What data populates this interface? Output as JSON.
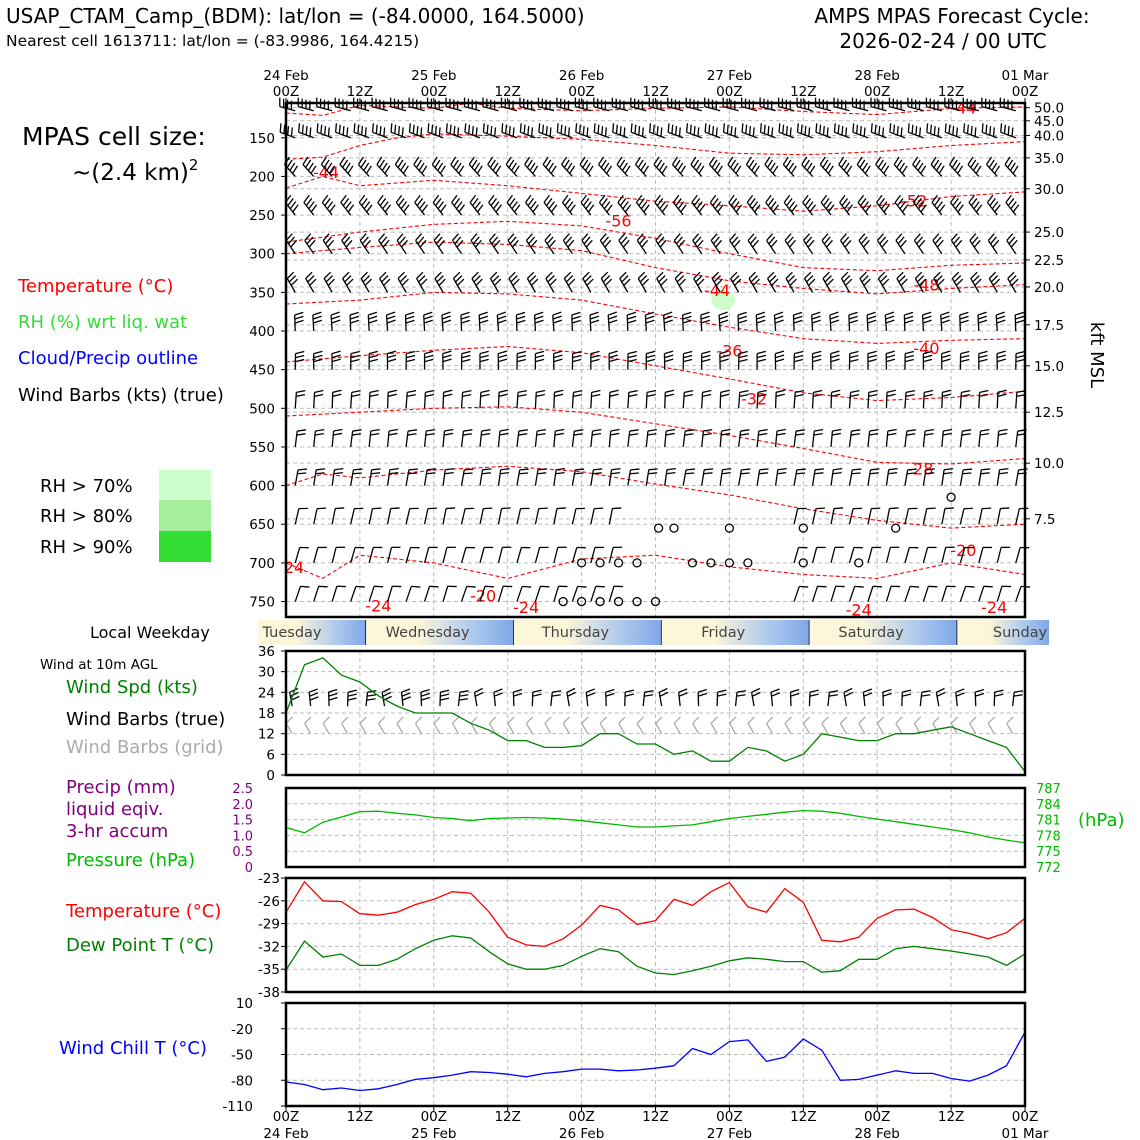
{
  "header": {
    "title_left": "USAP_CTAM_Camp_(BDM): lat/lon = (-84.0000, 164.5000)",
    "subtitle_left": "Nearest cell 1613711: lat/lon = (-83.9986, 164.4215)",
    "title_right_1": "AMPS MPAS Forecast Cycle:",
    "title_right_2": "2026-02-24 / 00 UTC"
  },
  "left_panel": {
    "cell_size_1": "MPAS cell size:",
    "cell_size_2": "~(2.4 km)",
    "cell_size_sup": "2",
    "legend": [
      {
        "label": "Temperature (°C)",
        "color": "#ff0000"
      },
      {
        "label": "RH (%) wrt liq. wat",
        "color": "#33dd33"
      },
      {
        "label": "Cloud/Precip outline",
        "color": "#0000ff"
      },
      {
        "label": "Wind Barbs (kts) (true)",
        "color": "#000000"
      }
    ],
    "rh_legend": [
      {
        "label": "RH > 70%",
        "color": "#ccffcc"
      },
      {
        "label": "RH > 80%",
        "color": "#a4ee9c"
      },
      {
        "label": "RH > 90%",
        "color": "#33dd33"
      }
    ]
  },
  "time_axis": {
    "top_labels": [
      {
        "t": 0,
        "l1": "24 Feb",
        "l2": "00Z"
      },
      {
        "t": 12,
        "l1": "",
        "l2": "12Z"
      },
      {
        "t": 24,
        "l1": "25 Feb",
        "l2": "00Z"
      },
      {
        "t": 36,
        "l1": "",
        "l2": "12Z"
      },
      {
        "t": 48,
        "l1": "26 Feb",
        "l2": "00Z"
      },
      {
        "t": 60,
        "l1": "",
        "l2": "12Z"
      },
      {
        "t": 72,
        "l1": "27 Feb",
        "l2": "00Z"
      },
      {
        "t": 84,
        "l1": "",
        "l2": "12Z"
      },
      {
        "t": 96,
        "l1": "28 Feb",
        "l2": "00Z"
      },
      {
        "t": 108,
        "l1": "",
        "l2": "12Z"
      },
      {
        "t": 120,
        "l1": "01 Mar",
        "l2": "00Z"
      }
    ]
  },
  "weekday": {
    "label": "Local Weekday",
    "days": [
      {
        "name": "Tuesday",
        "t": 0
      },
      {
        "name": "Wednesday",
        "t": 23
      },
      {
        "name": "Thursday",
        "t": 47
      },
      {
        "name": "Friday",
        "t": 71
      },
      {
        "name": "Saturday",
        "t": 95
      },
      {
        "name": "Sunday",
        "t": 119
      }
    ],
    "boundaries": [
      13,
      37,
      61,
      85,
      109
    ]
  },
  "colors": {
    "temperature": "#ff0000",
    "dewpoint": "#008000",
    "wind_speed": "#008000",
    "pressure": "#00bb00",
    "precip": "#800080",
    "wind_chill": "#0000ff",
    "grid_barb": "#aaaaaa"
  },
  "chart_data": [
    {
      "type": "heatmap",
      "name": "upper_air_cross_section",
      "y_left_label": "",
      "y_right_label": "kft MSL",
      "y_left_ticks": [
        150,
        200,
        250,
        300,
        350,
        400,
        450,
        500,
        550,
        600,
        650,
        700,
        750
      ],
      "y_right_ticks": [
        {
          "p": 111,
          "label": "50.0"
        },
        {
          "p": 128,
          "label": "45.0"
        },
        {
          "p": 147,
          "label": "40.0"
        },
        {
          "p": 176,
          "label": "35.0"
        },
        {
          "p": 216,
          "label": "30.0"
        },
        {
          "p": 272,
          "label": "25.0"
        },
        {
          "p": 308,
          "label": "22.5"
        },
        {
          "p": 343,
          "label": "20.0"
        },
        {
          "p": 392,
          "label": "17.5"
        },
        {
          "p": 445,
          "label": "15.0"
        },
        {
          "p": 505,
          "label": "12.5"
        },
        {
          "p": 571,
          "label": "10.0"
        },
        {
          "p": 643,
          "label": "7.5"
        }
      ],
      "p_range": [
        105,
        770
      ],
      "x_range_hours": [
        0,
        120
      ],
      "temperature_contour_labels": [
        {
          "t": 110,
          "p": 111,
          "label": "-44"
        },
        {
          "t": 6.5,
          "p": 194,
          "label": "-44"
        },
        {
          "t": 102,
          "p": 231,
          "label": "-52"
        },
        {
          "t": 54,
          "p": 257,
          "label": "-56"
        },
        {
          "t": 70,
          "p": 347,
          "label": "-44"
        },
        {
          "t": 104,
          "p": 340,
          "label": "-48"
        },
        {
          "t": 72,
          "p": 425,
          "label": "-36"
        },
        {
          "t": 104,
          "p": 422,
          "label": "-40"
        },
        {
          "t": 76,
          "p": 487,
          "label": "-32"
        },
        {
          "t": 103,
          "p": 578,
          "label": "-28"
        },
        {
          "t": 110,
          "p": 683,
          "label": "-20"
        },
        {
          "t": 1.3,
          "p": 705,
          "label": "24"
        },
        {
          "t": 15,
          "p": 755,
          "label": "-24"
        },
        {
          "t": 32,
          "p": 742,
          "label": "-20"
        },
        {
          "t": 39,
          "p": 757,
          "label": "-24"
        },
        {
          "t": 93,
          "p": 760,
          "label": "-24"
        },
        {
          "t": 115,
          "p": 757,
          "label": "-24"
        }
      ],
      "rh_patches": [
        {
          "t": 71,
          "p": 360,
          "level": "70"
        }
      ],
      "calm_markers": [
        {
          "t": 60.5,
          "p": 655
        },
        {
          "t": 63,
          "p": 655
        },
        {
          "t": 72,
          "p": 655
        },
        {
          "t": 84,
          "p": 655
        },
        {
          "t": 99,
          "p": 655
        },
        {
          "t": 48,
          "p": 700
        },
        {
          "t": 51,
          "p": 700
        },
        {
          "t": 54,
          "p": 700
        },
        {
          "t": 57,
          "p": 700
        },
        {
          "t": 66,
          "p": 700
        },
        {
          "t": 69,
          "p": 700
        },
        {
          "t": 72,
          "p": 700
        },
        {
          "t": 75,
          "p": 700
        },
        {
          "t": 84,
          "p": 700
        },
        {
          "t": 93,
          "p": 700
        },
        {
          "t": 45,
          "p": 750
        },
        {
          "t": 48,
          "p": 750
        },
        {
          "t": 51,
          "p": 750
        },
        {
          "t": 54,
          "p": 750
        },
        {
          "t": 57,
          "p": 750
        },
        {
          "t": 60,
          "p": 750
        },
        {
          "t": 108,
          "p": 615
        }
      ]
    },
    {
      "type": "line",
      "name": "wind_10m",
      "label_top": "Wind at 10m AGL",
      "labels": [
        "Wind Spd (kts)",
        "Wind Barbs (true)",
        "Wind Barbs (grid)"
      ],
      "ylim": [
        0,
        36
      ],
      "y_ticks": [
        0,
        6,
        12,
        18,
        24,
        30,
        36
      ],
      "x": [
        0,
        3,
        6,
        9,
        12,
        15,
        18,
        21,
        24,
        27,
        30,
        33,
        36,
        39,
        42,
        45,
        48,
        51,
        54,
        57,
        60,
        63,
        66,
        69,
        72,
        75,
        78,
        81,
        84,
        87,
        90,
        93,
        96,
        99,
        102,
        105,
        108,
        111,
        114,
        117,
        120
      ],
      "values": [
        18,
        32,
        34,
        29,
        27,
        23,
        20,
        18,
        18,
        18,
        15,
        13,
        10,
        10,
        8,
        8,
        8.5,
        12,
        12,
        9,
        9,
        6,
        7,
        4,
        4,
        8,
        7,
        4,
        6,
        12,
        11,
        10,
        10,
        12,
        12,
        13,
        14,
        12,
        10,
        8,
        1
      ]
    },
    {
      "type": "line",
      "name": "precip_pressure",
      "labels": [
        "Precip (mm)",
        "liquid eqiv.",
        "3-hr accum",
        "Pressure (hPa)"
      ],
      "y_left_ticks": [
        "0",
        "0.5",
        "1.0",
        "1.5",
        "2.0",
        "2.5"
      ],
      "y_right_ticks": [
        "772",
        "775",
        "778",
        "781",
        "784",
        "787"
      ],
      "y_right_unit": "(hPa)",
      "ylim_left": [
        0,
        2.5
      ],
      "ylim_right": [
        772,
        787
      ],
      "x": [
        0,
        3,
        6,
        9,
        12,
        15,
        18,
        21,
        24,
        27,
        30,
        33,
        36,
        39,
        42,
        45,
        48,
        51,
        54,
        57,
        60,
        63,
        66,
        69,
        72,
        75,
        78,
        81,
        84,
        87,
        90,
        93,
        96,
        99,
        102,
        105,
        108,
        111,
        114,
        117,
        120
      ],
      "pressure": [
        779.5,
        778.5,
        780.5,
        781.5,
        782.5,
        782.6,
        782.2,
        781.9,
        781.4,
        781.2,
        780.8,
        781.2,
        781.3,
        781.4,
        781.3,
        781.1,
        780.8,
        780.4,
        780.0,
        779.6,
        779.6,
        779.8,
        780.0,
        780.6,
        781.2,
        781.6,
        782.0,
        782.4,
        782.7,
        782.6,
        782.2,
        781.6,
        781.1,
        780.6,
        780.1,
        779.6,
        779.1,
        778.5,
        777.7,
        777.1,
        776.6
      ],
      "precip": [
        0,
        0,
        0,
        0,
        0,
        0,
        0,
        0,
        0,
        0,
        0,
        0,
        0,
        0,
        0,
        0,
        0,
        0,
        0,
        0,
        0,
        0,
        0,
        0,
        0,
        0,
        0,
        0,
        0,
        0,
        0,
        0,
        0,
        0,
        0,
        0,
        0,
        0,
        0,
        0,
        0
      ]
    },
    {
      "type": "line",
      "name": "temperature_dewpoint",
      "labels": [
        "Temperature (°C)",
        "Dew Point T (°C)"
      ],
      "ylim": [
        -38,
        -23
      ],
      "y_ticks": [
        -38,
        -35,
        -32,
        -29,
        -26,
        -23
      ],
      "x": [
        0,
        3,
        6,
        9,
        12,
        15,
        18,
        21,
        24,
        27,
        30,
        33,
        36,
        39,
        42,
        45,
        48,
        51,
        54,
        57,
        60,
        63,
        66,
        69,
        72,
        75,
        78,
        81,
        84,
        87,
        90,
        93,
        96,
        99,
        102,
        105,
        108,
        111,
        114,
        117,
        120
      ],
      "series": [
        {
          "name": "Temperature (°C)",
          "values": [
            -27.5,
            -23.5,
            -26.0,
            -26.1,
            -27.7,
            -27.9,
            -27.5,
            -26.5,
            -25.8,
            -24.8,
            -25.0,
            -27.5,
            -30.8,
            -31.8,
            -32.0,
            -31.0,
            -29.2,
            -26.6,
            -27.2,
            -29.1,
            -28.6,
            -25.8,
            -26.6,
            -24.8,
            -23.6,
            -26.8,
            -27.5,
            -24.4,
            -26.2,
            -31.2,
            -31.4,
            -30.8,
            -28.3,
            -27.2,
            -27.1,
            -28.2,
            -29.8,
            -30.3,
            -31.0,
            -30.2,
            -28.3
          ]
        },
        {
          "name": "Dew Point T (°C)",
          "values": [
            -35.1,
            -31.3,
            -33.4,
            -33.0,
            -34.5,
            -34.5,
            -33.7,
            -32.3,
            -31.2,
            -30.6,
            -30.9,
            -32.7,
            -34.3,
            -35.0,
            -35.0,
            -34.5,
            -33.3,
            -32.3,
            -32.7,
            -34.6,
            -35.5,
            -35.7,
            -35.2,
            -34.6,
            -33.9,
            -33.5,
            -33.7,
            -34.0,
            -34.0,
            -35.4,
            -35.2,
            -33.7,
            -33.7,
            -32.3,
            -32.0,
            -32.3,
            -32.6,
            -33.0,
            -33.4,
            -34.5,
            -33.0
          ]
        }
      ]
    },
    {
      "type": "line",
      "name": "wind_chill",
      "labels": [
        "Wind Chill T (°C)"
      ],
      "ylim": [
        -110,
        10
      ],
      "y_ticks": [
        -110,
        -80,
        -50,
        -20,
        10
      ],
      "x": [
        0,
        3,
        6,
        9,
        12,
        15,
        18,
        21,
        24,
        27,
        30,
        33,
        36,
        39,
        42,
        45,
        48,
        51,
        54,
        57,
        60,
        63,
        66,
        69,
        72,
        75,
        78,
        81,
        84,
        87,
        90,
        93,
        96,
        99,
        102,
        105,
        108,
        111,
        114,
        117,
        120
      ],
      "values": [
        -82,
        -85,
        -91,
        -89,
        -92,
        -90,
        -85,
        -79,
        -77,
        -74,
        -70,
        -71,
        -73,
        -76,
        -72,
        -70,
        -67,
        -67,
        -69,
        -68,
        -66,
        -63,
        -43,
        -50,
        -35,
        -33,
        -58,
        -53,
        -32,
        -45,
        -80,
        -79,
        -74,
        -69,
        -72,
        -72,
        -78,
        -81,
        -74,
        -63,
        -24
      ]
    }
  ],
  "bottom_axis": {
    "labels": [
      {
        "t": 0,
        "l1": "00Z",
        "l2": "24 Feb"
      },
      {
        "t": 12,
        "l1": "12Z",
        "l2": ""
      },
      {
        "t": 24,
        "l1": "00Z",
        "l2": "25 Feb"
      },
      {
        "t": 36,
        "l1": "12Z",
        "l2": ""
      },
      {
        "t": 48,
        "l1": "00Z",
        "l2": "26 Feb"
      },
      {
        "t": 60,
        "l1": "12Z",
        "l2": ""
      },
      {
        "t": 72,
        "l1": "00Z",
        "l2": "27 Feb"
      },
      {
        "t": 84,
        "l1": "12Z",
        "l2": ""
      },
      {
        "t": 96,
        "l1": "00Z",
        "l2": "28 Feb"
      },
      {
        "t": 108,
        "l1": "12Z",
        "l2": ""
      },
      {
        "t": 120,
        "l1": "00Z",
        "l2": "01 Mar"
      }
    ]
  }
}
